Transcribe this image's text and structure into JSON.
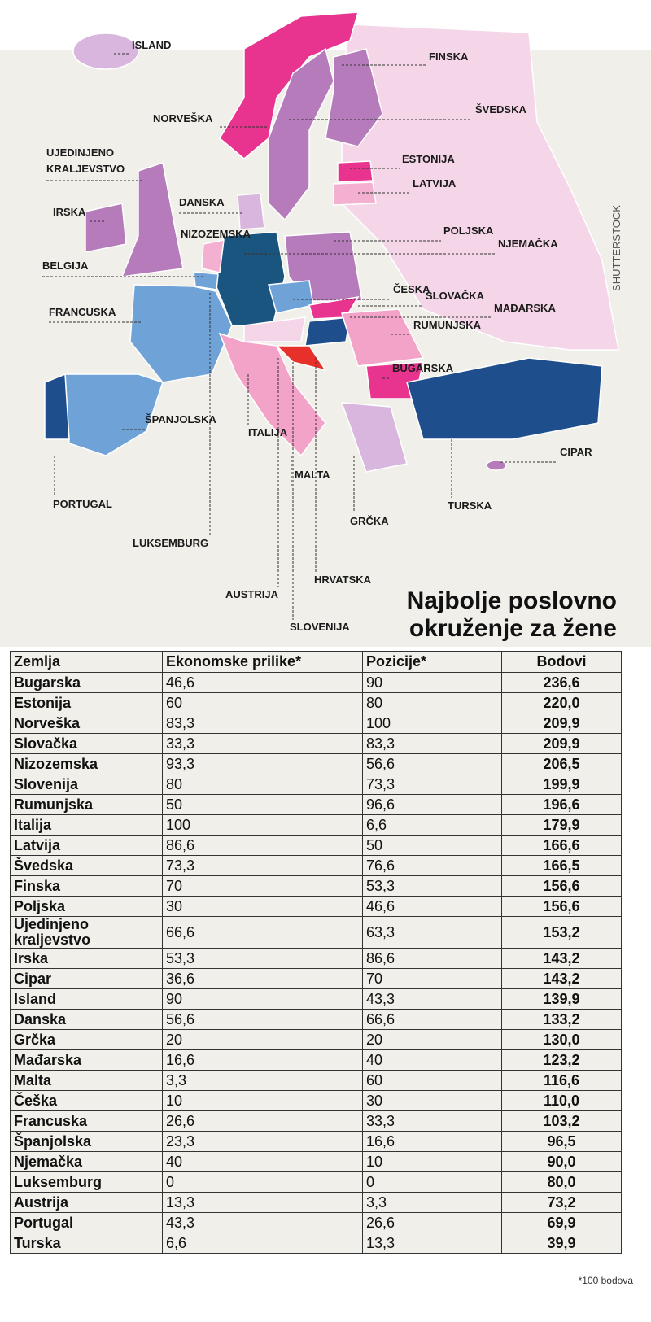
{
  "map": {
    "labels": [
      "ISLAND",
      "FINSKA",
      "NORVEŠKA",
      "ŠVEDSKA",
      "UJEDINJENO",
      "KRALJEVSTVO",
      "ESTONIJA",
      "LATVIJA",
      "IRSKA",
      "DANSKA",
      "NIZOZEMSKA",
      "POLJSKA",
      "NJEMAČKA",
      "BELGIJA",
      "ČESKA",
      "SLOVAČKA",
      "MAĐARSKA",
      "FRANCUSKA",
      "RUMUNJSKA",
      "BUGARSKA",
      "ŠPANJOLSKA",
      "ITALIJA",
      "CIPAR",
      "MALTA",
      "PORTUGAL",
      "TURSKA",
      "GRČKA",
      "LUKSEMBURG",
      "HRVATSKA",
      "AUSTRIJA",
      "SLOVENIJA"
    ],
    "credit": "SHUTTERSTOCK"
  },
  "title": [
    "Najbolje poslovno",
    "okruženje za žene"
  ],
  "table": {
    "header": [
      "Zemlja",
      "Ekonomske prilike*",
      "Pozicije*",
      "Bodovi"
    ],
    "rows": [
      [
        "Bugarska",
        "46,6",
        "90",
        "236,6"
      ],
      [
        "Estonija",
        "60",
        "80",
        "220,0"
      ],
      [
        "Norveška",
        "83,3",
        "100",
        "209,9"
      ],
      [
        "Slovačka",
        "33,3",
        "83,3",
        "209,9"
      ],
      [
        "Nizozemska",
        "93,3",
        "56,6",
        "206,5"
      ],
      [
        "Slovenija",
        "80",
        "73,3",
        "199,9"
      ],
      [
        "Rumunjska",
        "50",
        "96,6",
        "196,6"
      ],
      [
        "Italija",
        "100",
        "6,6",
        "179,9"
      ],
      [
        "Latvija",
        "86,6",
        "50",
        "166,6"
      ],
      [
        "Švedska",
        "73,3",
        "76,6",
        "166,5"
      ],
      [
        "Finska",
        "70",
        "53,3",
        "156,6"
      ],
      [
        "Poljska",
        "30",
        "46,6",
        "156,6"
      ],
      [
        "Ujedinjeno kraljevstvo",
        "66,6",
        "63,3",
        "153,2"
      ],
      [
        "Irska",
        "53,3",
        "86,6",
        "143,2"
      ],
      [
        "Cipar",
        "36,6",
        "70",
        "143,2"
      ],
      [
        "Island",
        "90",
        "43,3",
        "139,9"
      ],
      [
        "Danska",
        "56,6",
        "66,6",
        "133,2"
      ],
      [
        "Grčka",
        "20",
        "20",
        "130,0"
      ],
      [
        "Mađarska",
        "16,6",
        "40",
        "123,2"
      ],
      [
        "Malta",
        "3,3",
        "60",
        "116,6"
      ],
      [
        "Češka",
        "10",
        "30",
        "110,0"
      ],
      [
        "Francuska",
        "26,6",
        "33,3",
        "103,2"
      ],
      [
        "Španjolska",
        "23,3",
        "16,6",
        "96,5"
      ],
      [
        "Njemačka",
        "40",
        "10",
        "90,0"
      ],
      [
        "Luksemburg",
        "0",
        "0",
        "80,0"
      ],
      [
        "Austrija",
        "13,3",
        "3,3",
        "73,2"
      ],
      [
        "Portugal",
        "43,3",
        "26,6",
        "69,9"
      ],
      [
        "Turska",
        "6,6",
        "13,3",
        "39,9"
      ]
    ]
  },
  "footnote": "*100 bodova"
}
